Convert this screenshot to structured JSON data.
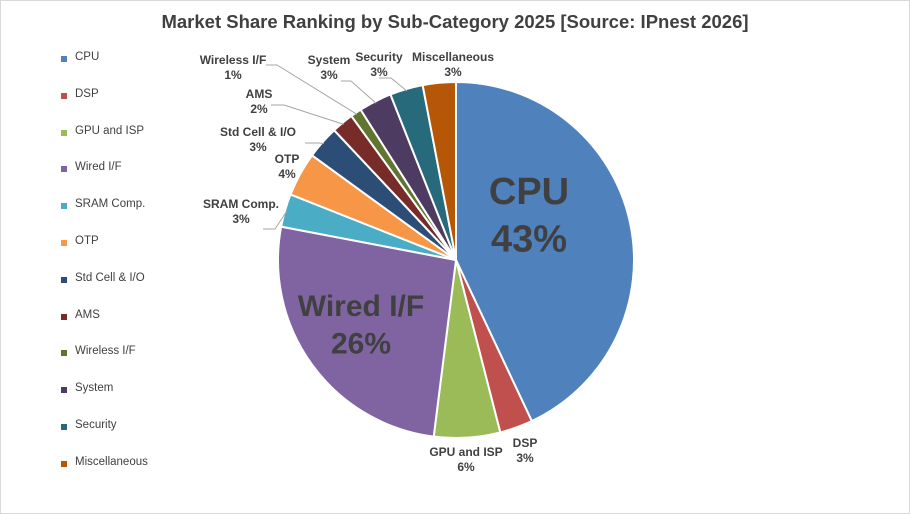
{
  "chart_data": {
    "type": "pie",
    "title": "Market Share Ranking by Sub-Category 2025 [Source: IPnest 2026]",
    "slices": [
      {
        "name": "CPU",
        "value": 43,
        "value_label": "43%",
        "color": "#4F81BD"
      },
      {
        "name": "DSP",
        "value": 3,
        "value_label": "3%",
        "color": "#C0504D"
      },
      {
        "name": "GPU and ISP",
        "value": 6,
        "value_label": "6%",
        "color": "#9BBB59"
      },
      {
        "name": "Wired I/F",
        "value": 26,
        "value_label": "26%",
        "color": "#8064A2"
      },
      {
        "name": "SRAM Comp.",
        "value": 3,
        "value_label": "3%",
        "color": "#4BACC6"
      },
      {
        "name": "OTP",
        "value": 4,
        "value_label": "4%",
        "color": "#F79646"
      },
      {
        "name": "Std Cell & I/O",
        "value": 3,
        "value_label": "3%",
        "color": "#2C4D75"
      },
      {
        "name": "AMS",
        "value": 2,
        "value_label": "2%",
        "color": "#772C2A"
      },
      {
        "name": "Wireless I/F",
        "value": 1,
        "value_label": "1%",
        "color": "#5F7530"
      },
      {
        "name": "System",
        "value": 3,
        "value_label": "3%",
        "color": "#4D3B62"
      },
      {
        "name": "Security",
        "value": 3,
        "value_label": "3%",
        "color": "#276A7C"
      },
      {
        "name": "Miscellaneous",
        "value": 3,
        "value_label": "3%",
        "color": "#B65708"
      }
    ],
    "legend_position": "left"
  }
}
